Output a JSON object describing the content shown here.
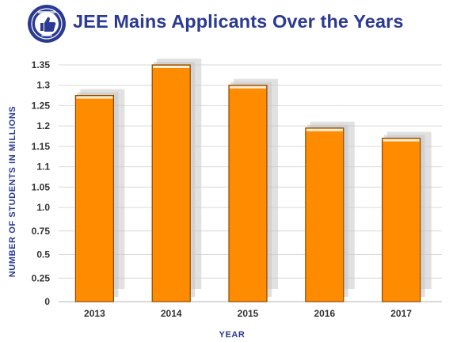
{
  "title": "JEE Mains Applicants Over the Years",
  "logo": {
    "icon": "thumbs-up-badge-icon",
    "color": "#2b3a92"
  },
  "colors": {
    "bar": "#ff8c00",
    "bar_stroke": "#8b4a00",
    "shadow": "#c8c8c8",
    "grid": "#d9d9d9",
    "axis_title": "#2b3a92",
    "title": "#2b3a92"
  },
  "chart_data": {
    "type": "bar",
    "title": "JEE Mains Applicants Over the Years",
    "categories": [
      "2013",
      "2014",
      "2015",
      "2016",
      "2017"
    ],
    "values": [
      1.275,
      1.35,
      1.3,
      1.195,
      1.17
    ],
    "xlabel": "YEAR",
    "ylabel": "NUMBER OF STUDENTS IN MILLIONS",
    "ylim": [
      0,
      1.35
    ],
    "yticks": [
      "0",
      "0.25",
      "0.5",
      "0.75",
      "1.0",
      "1.05",
      "1.1",
      "1.15",
      "1.2",
      "1.25",
      "1.3",
      "1.35"
    ],
    "grid": true,
    "legend": "none"
  }
}
